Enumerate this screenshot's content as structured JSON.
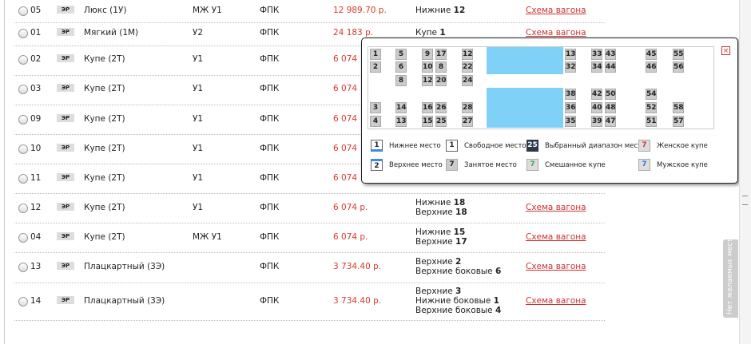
{
  "table": {
    "rows": [
      {
        "number": "05",
        "badge": "ЭР",
        "class": "Люкс (1У)",
        "service": "МЖ У1",
        "carrier": "ФПК",
        "price": "12 989.70 р.",
        "seats": [
          {
            "label": "Нижние",
            "count": 12
          }
        ],
        "link": "Схема вагона"
      },
      {
        "number": "01",
        "badge": "ЭР",
        "class": "Мягкий (1М)",
        "service": "У2",
        "carrier": "ФПК",
        "price": "24 183 р.",
        "seats": [
          {
            "label": "Купе",
            "count": 1
          }
        ],
        "link": "Схема вагона"
      },
      {
        "number": "02",
        "badge": "ЭР",
        "class": "Купе (2Т)",
        "service": "У1",
        "carrier": "ФПК",
        "price": "6 074",
        "seats": []
      },
      {
        "number": "03",
        "badge": "ЭР",
        "class": "Купе (2Т)",
        "service": "У1",
        "carrier": "ФПК",
        "price": "6 074",
        "seats": []
      },
      {
        "number": "09",
        "badge": "ЭР",
        "class": "Купе (2Т)",
        "service": "У1",
        "carrier": "ФПК",
        "price": "6 074",
        "seats": []
      },
      {
        "number": "10",
        "badge": "ЭР",
        "class": "Купе (2Т)",
        "service": "У1",
        "carrier": "ФПК",
        "price": "6 074",
        "seats": []
      },
      {
        "number": "11",
        "badge": "ЭР",
        "class": "Купе (2Т)",
        "service": "У1",
        "carrier": "ФПК",
        "price": "6 074",
        "seats": []
      },
      {
        "number": "12",
        "badge": "ЭР",
        "class": "Купе (2Т)",
        "service": "У1",
        "carrier": "ФПК",
        "price": "6 074 р.",
        "seats": [
          {
            "label": "Нижние",
            "count": 18
          },
          {
            "label": "Верхние",
            "count": 18
          }
        ],
        "link": "Схема вагона"
      },
      {
        "number": "04",
        "badge": "ЭР",
        "class": "Купе (2Т)",
        "service": "МЖ У1",
        "carrier": "ФПК",
        "price": "6 074 р.",
        "seats": [
          {
            "label": "Нижние",
            "count": 15
          },
          {
            "label": "Верхние",
            "count": 17
          }
        ],
        "link": "Схема вагона"
      },
      {
        "number": "13",
        "badge": "ЭР",
        "class": "Плацкартный (3Э)",
        "carrier": "ФПК",
        "price": "3 734.40 р.",
        "seats": [
          {
            "label": "Верхние",
            "count": 2
          },
          {
            "label": "Верхние боковые",
            "count": 6
          }
        ],
        "link": "Схема вагона"
      },
      {
        "number": "14",
        "badge": "ЭР",
        "class": "Плацкартный (3Э)",
        "carrier": "ФПК",
        "price": "3 734.40 р.",
        "seats": [
          {
            "label": "Верхние",
            "count": 3
          },
          {
            "label": "Нижние боковые",
            "count": 1
          },
          {
            "label": "Верхние боковые",
            "count": 4
          }
        ],
        "link": "Схема вагона"
      }
    ]
  },
  "seat_map": {
    "rows": [
      [
        1,
        5,
        9,
        17,
        12,
        13,
        33,
        43,
        45,
        55
      ],
      [
        2,
        6,
        10,
        8,
        22,
        32,
        34,
        44,
        46,
        56
      ],
      [
        null,
        8,
        12,
        20,
        24,
        null,
        null,
        null,
        null,
        null
      ],
      [
        null,
        null,
        null,
        null,
        null,
        38,
        42,
        50,
        54,
        null
      ],
      [
        3,
        14,
        16,
        26,
        28,
        36,
        40,
        48,
        52,
        58
      ],
      [
        4,
        13,
        15,
        25,
        27,
        35,
        39,
        47,
        51,
        57
      ]
    ]
  },
  "legend": {
    "items": [
      {
        "sample": 1,
        "label": "Нижнее место"
      },
      {
        "sample": 1,
        "label": "Свободное место"
      },
      {
        "sample": 25,
        "label": "Выбранный диапазон мест"
      },
      {
        "sample": 7,
        "label": "Женское купе"
      },
      {
        "sample": 2,
        "label": "Верхнее место"
      },
      {
        "sample": 7,
        "label": "Занятое место"
      },
      {
        "sample": 7,
        "label": "Смешанное купе"
      },
      {
        "sample": 7,
        "label": "Мужское купе"
      }
    ]
  },
  "side_tab": "Нет желаемых мест?"
}
